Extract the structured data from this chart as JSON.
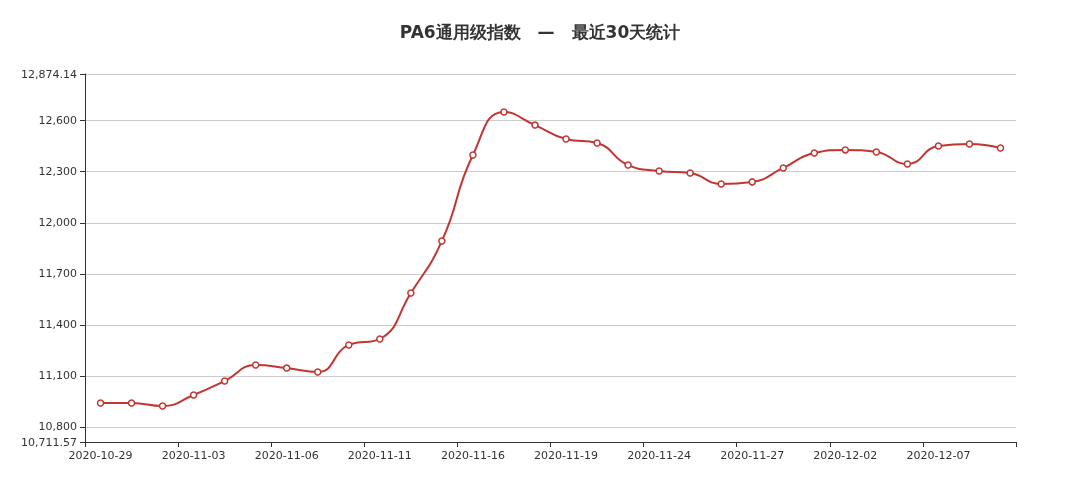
{
  "chart_data": {
    "type": "line",
    "title": "PA6通用级指数　—　最近30天统计",
    "categories": [
      "2020-10-29",
      null,
      null,
      "2020-11-03",
      null,
      null,
      "2020-11-06",
      null,
      null,
      "2020-11-11",
      null,
      null,
      "2020-11-16",
      null,
      null,
      "2020-11-19",
      null,
      null,
      "2020-11-24",
      null,
      null,
      "2020-11-27",
      null,
      null,
      "2020-12-02",
      null,
      null,
      "2020-12-07",
      null,
      null
    ],
    "series": [
      {
        "color": "#c23531",
        "values": [
          10941,
          10941,
          10923,
          10988,
          11070,
          11164,
          11146,
          11123,
          11282,
          11317,
          11587,
          11893,
          12398,
          12651,
          12574,
          12492,
          12469,
          12339,
          12304,
          12292,
          12228,
          12240,
          12322,
          12410,
          12428,
          12416,
          12345,
          12451,
          12463,
          12439
        ]
      }
    ],
    "ylim": [
      10711.57,
      12874.14
    ],
    "yticks": [
      {
        "value": 10711.57,
        "label": "10,711.57"
      },
      {
        "value": 10800,
        "label": "10,800"
      },
      {
        "value": 11100,
        "label": "11,100"
      },
      {
        "value": 11400,
        "label": "11,400"
      },
      {
        "value": 11700,
        "label": "11,700"
      },
      {
        "value": 12000,
        "label": "12,000"
      },
      {
        "value": 12300,
        "label": "12,300"
      },
      {
        "value": 12600,
        "label": "12,600"
      },
      {
        "value": 12874.14,
        "label": "12,874.14"
      }
    ],
    "grid": "y",
    "marker": "circle",
    "line_style": "solid"
  }
}
